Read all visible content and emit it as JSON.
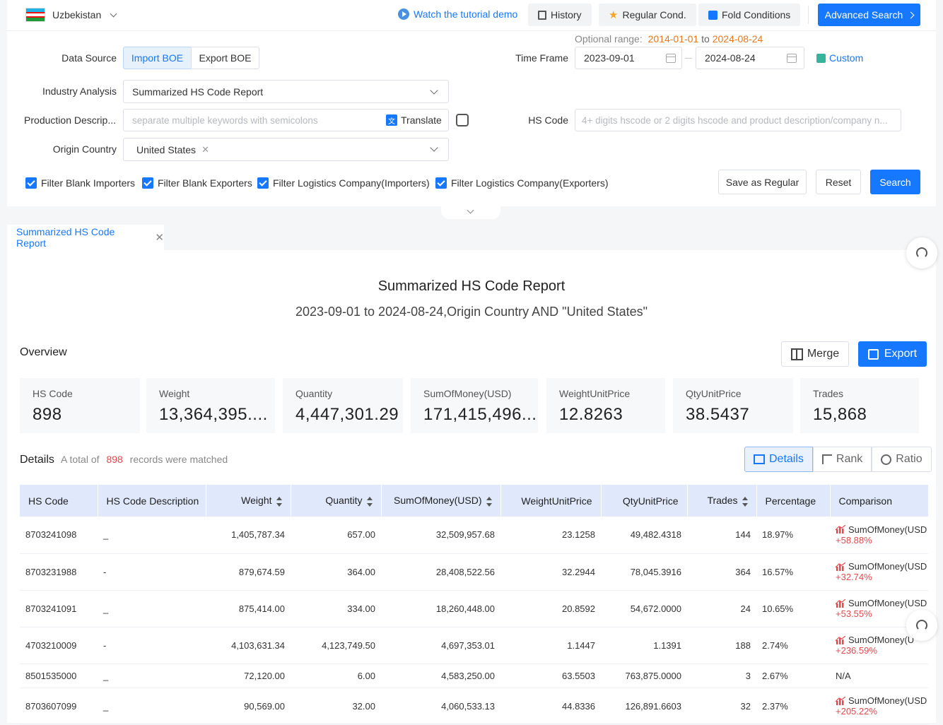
{
  "header": {
    "country": "Uzbekistan",
    "tutorial_link": "Watch the tutorial demo",
    "history": "History",
    "regular_cond": "Regular Cond.",
    "fold_conditions": "Fold Conditions",
    "advanced_search": "Advanced Search"
  },
  "form": {
    "data_source_label": "Data Source",
    "data_source_options": [
      "Import BOE",
      "Export BOE"
    ],
    "data_source_selected": "Import BOE",
    "optional_range_label": "Optional range:",
    "optional_range_start": "2014-01-01",
    "optional_range_to": "to",
    "optional_range_end": "2024-08-24",
    "time_frame_label": "Time Frame",
    "time_start": "2023-09-01",
    "time_end": "2024-08-24",
    "custom": "Custom",
    "industry_label": "Industry Analysis",
    "industry_value": "Summarized HS Code Report",
    "product_label": "Production Descrip...",
    "product_placeholder": "separate multiple keywords with semicolons",
    "translate": "Translate",
    "hs_label": "HS Code",
    "hs_placeholder": "4+ digits hscode or 2 digits hscode and product description/company n...",
    "origin_label": "Origin Country",
    "origin_tag": "United States",
    "filters": [
      "Filter Blank Importers",
      "Filter Blank Exporters",
      "Filter Logistics Company(Importers)",
      "Filter Logistics Company(Exporters)"
    ],
    "save_regular": "Save as Regular",
    "reset": "Reset",
    "search": "Search"
  },
  "tab": {
    "label": "Summarized HS Code Report"
  },
  "report": {
    "title": "Summarized HS Code Report",
    "subtitle": "2023-09-01 to 2024-08-24,Origin Country AND \"United States\"",
    "overview": "Overview",
    "merge": "Merge",
    "export": "Export"
  },
  "cards": [
    {
      "label": "HS Code",
      "value": "898"
    },
    {
      "label": "Weight",
      "value": "13,364,395...."
    },
    {
      "label": "Quantity",
      "value": "4,447,301.29"
    },
    {
      "label": "SumOfMoney(USD)",
      "value": "171,415,496..."
    },
    {
      "label": "WeightUnitPrice",
      "value": "12.8263"
    },
    {
      "label": "QtyUnitPrice",
      "value": "38.5437"
    },
    {
      "label": "Trades",
      "value": "15,868"
    }
  ],
  "details": {
    "title": "Details",
    "total_prefix": "A total of",
    "total_count": "898",
    "total_suffix": "records were matched",
    "views": [
      "Details",
      "Rank",
      "Ratio"
    ]
  },
  "table": {
    "columns": [
      "HS Code",
      "HS Code Description",
      "Weight",
      "Quantity",
      "SumOfMoney(USD)",
      "WeightUnitPrice",
      "QtyUnitPrice",
      "Trades",
      "Percentage",
      "Comparison"
    ],
    "rows": [
      {
        "code": "8703241098",
        "desc": "_",
        "weight": "1,405,787.34",
        "qty": "657.00",
        "money": "32,509,957.68",
        "wup": "23.1258",
        "qup": "49,482.4318",
        "trades": "144",
        "pct": "18.97%",
        "cmp_label": "SumOfMoney(USD",
        "cmp_pct": "+58.88%"
      },
      {
        "code": "8703231988",
        "desc": "-",
        "weight": "879,674.59",
        "qty": "364.00",
        "money": "28,408,522.56",
        "wup": "32.2944",
        "qup": "78,045.3916",
        "trades": "364",
        "pct": "16.57%",
        "cmp_label": "SumOfMoney(USD",
        "cmp_pct": "+32.74%"
      },
      {
        "code": "8703241091",
        "desc": "_",
        "weight": "875,414.00",
        "qty": "334.00",
        "money": "18,260,448.00",
        "wup": "20.8592",
        "qup": "54,672.0000",
        "trades": "24",
        "pct": "10.65%",
        "cmp_label": "SumOfMoney(USD",
        "cmp_pct": "+53.55%"
      },
      {
        "code": "4703210009",
        "desc": "-",
        "weight": "4,103,631.34",
        "qty": "4,123,749.50",
        "money": "4,697,353.01",
        "wup": "1.1447",
        "qup": "1.1391",
        "trades": "188",
        "pct": "2.74%",
        "cmp_label": "SumOfMoney(U",
        "cmp_pct": "+236.59%"
      },
      {
        "code": "8501535000",
        "desc": "_",
        "weight": "72,120.00",
        "qty": "6.00",
        "money": "4,583,250.00",
        "wup": "63.5503",
        "qup": "763,875.0000",
        "trades": "3",
        "pct": "2.67%",
        "cmp_label": "N/A",
        "cmp_pct": ""
      },
      {
        "code": "8703607099",
        "desc": "_",
        "weight": "90,569.00",
        "qty": "32.00",
        "money": "4,060,533.13",
        "wup": "44.8336",
        "qup": "126,891.6603",
        "trades": "32",
        "pct": "2.37%",
        "cmp_label": "SumOfMoney(USD",
        "cmp_pct": "+205.22%"
      }
    ]
  },
  "colors": {
    "accent": "#1677ff",
    "range": "#e6781e",
    "negative": "#e5484d"
  }
}
